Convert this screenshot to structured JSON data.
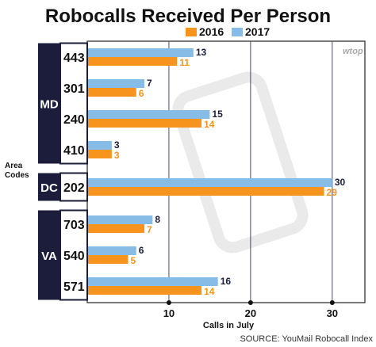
{
  "colors": {
    "series_2016": "#f7941d",
    "series_2017": "#87bce6",
    "state_block": "#1b1d3a",
    "label_2017": "#1b1d3a",
    "label_2016": "#f7941d",
    "grid": "#4a4a6a"
  },
  "watermark": "wtop",
  "area_codes_label": "Area\nCodes",
  "source": "SOURCE: YouMail Robocall Index",
  "chart_data": {
    "type": "bar",
    "orientation": "horizontal",
    "title": "Robocalls Received Per Person",
    "xlabel": "Calls in July",
    "ylabel": "Area Codes",
    "xlim": [
      0,
      34
    ],
    "xticks": [
      10,
      20,
      30
    ],
    "grid": true,
    "legend": "top",
    "categories": [
      "443",
      "301",
      "240",
      "410",
      "202",
      "703",
      "540",
      "571"
    ],
    "groups": [
      {
        "name": "MD",
        "categories": [
          "443",
          "301",
          "240",
          "410"
        ]
      },
      {
        "name": "DC",
        "categories": [
          "202"
        ]
      },
      {
        "name": "VA",
        "categories": [
          "703",
          "540",
          "571"
        ]
      }
    ],
    "series": [
      {
        "name": "2016",
        "values": [
          11,
          6,
          14,
          3,
          29,
          7,
          5,
          14
        ]
      },
      {
        "name": "2017",
        "values": [
          13,
          7,
          15,
          3,
          30,
          8,
          6,
          16
        ]
      }
    ]
  }
}
